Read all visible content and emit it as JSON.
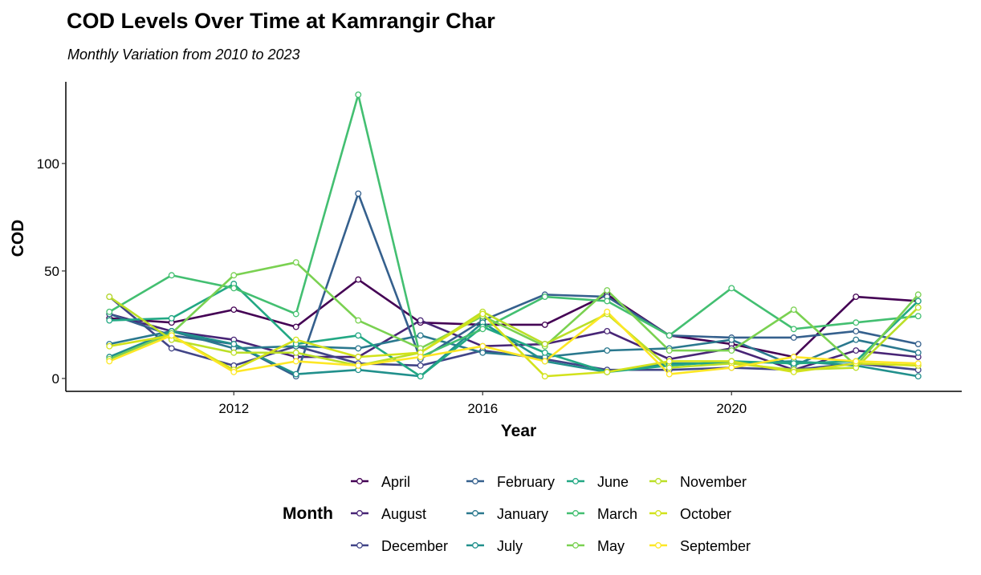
{
  "chart_data": {
    "type": "line",
    "title": "COD Levels Over Time at Kamrangir Char",
    "subtitle": "Monthly Variation from 2010 to 2023",
    "xlabel": "Year",
    "ylabel": "COD",
    "x": [
      2010,
      2011,
      2012,
      2013,
      2014,
      2015,
      2016,
      2017,
      2018,
      2019,
      2020,
      2021,
      2022,
      2023
    ],
    "xlim": [
      2009.3,
      2023.7
    ],
    "ylim": [
      -6,
      138
    ],
    "xticks": [
      2012,
      2016,
      2020
    ],
    "yticks": [
      0,
      50,
      100
    ],
    "grid": false,
    "legend": {
      "title": "Month",
      "placement": "bottom",
      "columns": [
        [
          "April",
          "August",
          "December"
        ],
        [
          "February",
          "January",
          "July"
        ],
        [
          "June",
          "March",
          "May"
        ],
        [
          "November",
          "October",
          "September"
        ]
      ]
    },
    "series": [
      {
        "name": "April",
        "color": "#440154",
        "values": [
          28,
          26,
          32,
          24,
          46,
          26,
          25,
          25,
          39,
          20,
          16,
          10,
          38,
          36
        ]
      },
      {
        "name": "August",
        "color": "#482576",
        "values": [
          30,
          22,
          18,
          10,
          10,
          27,
          15,
          16,
          22,
          9,
          14,
          4,
          13,
          10
        ]
      },
      {
        "name": "December",
        "color": "#414487",
        "values": [
          38,
          14,
          6,
          15,
          7,
          6,
          13,
          9,
          4,
          4,
          5,
          4,
          7,
          4
        ]
      },
      {
        "name": "February",
        "color": "#35608D",
        "values": [
          30,
          20,
          16,
          1,
          86,
          9,
          27,
          39,
          38,
          20,
          19,
          19,
          22,
          16
        ]
      },
      {
        "name": "January",
        "color": "#2A788E",
        "values": [
          16,
          22,
          14,
          15,
          14,
          20,
          12,
          10,
          13,
          14,
          18,
          6,
          18,
          12
        ]
      },
      {
        "name": "July",
        "color": "#21908C",
        "values": [
          10,
          22,
          16,
          2,
          4,
          1,
          26,
          8,
          3,
          7,
          7,
          8,
          6,
          1
        ]
      },
      {
        "name": "June",
        "color": "#22A884",
        "values": [
          27,
          28,
          44,
          16,
          20,
          1,
          24,
          12,
          3,
          6,
          8,
          7,
          8,
          36
        ]
      },
      {
        "name": "March",
        "color": "#43BF71",
        "values": [
          31,
          48,
          42,
          30,
          132,
          10,
          23,
          38,
          36,
          20,
          42,
          23,
          26,
          29
        ]
      },
      {
        "name": "May",
        "color": "#7AD151",
        "values": [
          9,
          21,
          48,
          54,
          27,
          14,
          29,
          15,
          41,
          13,
          13,
          32,
          6,
          39
        ]
      },
      {
        "name": "November",
        "color": "#BBDF27",
        "values": [
          38,
          18,
          12,
          12,
          6,
          12,
          31,
          16,
          30,
          5,
          7,
          4,
          5,
          33
        ]
      },
      {
        "name": "October",
        "color": "#D2E21B",
        "values": [
          15,
          20,
          4,
          18,
          10,
          12,
          30,
          1,
          3,
          8,
          8,
          3,
          7,
          6
        ]
      },
      {
        "name": "September",
        "color": "#FDE725",
        "values": [
          8,
          20,
          3,
          8,
          6,
          10,
          15,
          8,
          31,
          2,
          5,
          10,
          8,
          7
        ]
      }
    ]
  }
}
